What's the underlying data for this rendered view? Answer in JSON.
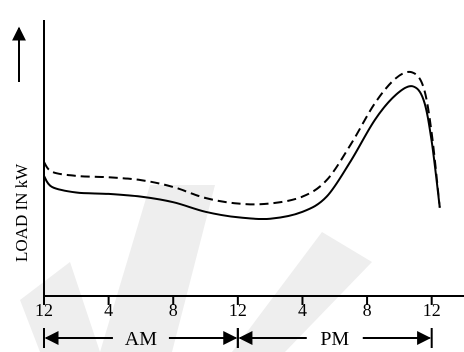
{
  "chart_data": {
    "type": "line",
    "ylabel": "LOAD IN kW",
    "xticks": [
      {
        "hour": 0,
        "label": "12"
      },
      {
        "hour": 4,
        "label": "4"
      },
      {
        "hour": 8,
        "label": "8"
      },
      {
        "hour": 12,
        "label": "12"
      },
      {
        "hour": 16,
        "label": "4"
      },
      {
        "hour": 20,
        "label": "8"
      },
      {
        "hour": 24,
        "label": "12"
      }
    ],
    "periods": [
      {
        "label": "AM",
        "start_hour": 0,
        "end_hour": 12
      },
      {
        "label": "PM",
        "start_hour": 12,
        "end_hour": 24
      }
    ],
    "xlim": [
      0,
      26
    ],
    "ylim": [
      0,
      10
    ],
    "grid": false,
    "series": [
      {
        "style": "solid",
        "color": "#000000",
        "points": [
          [
            0.0,
            4.35
          ],
          [
            0.5,
            3.95
          ],
          [
            2,
            3.75
          ],
          [
            4,
            3.7
          ],
          [
            6,
            3.6
          ],
          [
            8,
            3.4
          ],
          [
            10,
            3.05
          ],
          [
            12,
            2.85
          ],
          [
            14,
            2.8
          ],
          [
            16,
            3.05
          ],
          [
            17.5,
            3.6
          ],
          [
            19,
            4.9
          ],
          [
            20.5,
            6.4
          ],
          [
            21.8,
            7.3
          ],
          [
            22.8,
            7.6
          ],
          [
            23.5,
            7.1
          ],
          [
            24.0,
            5.6
          ],
          [
            24.5,
            3.2
          ]
        ]
      },
      {
        "style": "dashed",
        "color": "#000000",
        "points": [
          [
            0.0,
            4.85
          ],
          [
            0.5,
            4.5
          ],
          [
            2,
            4.35
          ],
          [
            4,
            4.3
          ],
          [
            6,
            4.2
          ],
          [
            8,
            3.95
          ],
          [
            10,
            3.55
          ],
          [
            12,
            3.35
          ],
          [
            14,
            3.35
          ],
          [
            16,
            3.6
          ],
          [
            17.5,
            4.2
          ],
          [
            19,
            5.5
          ],
          [
            20.5,
            7.0
          ],
          [
            21.8,
            7.9
          ],
          [
            22.8,
            8.1
          ],
          [
            23.5,
            7.55
          ],
          [
            24.0,
            5.9
          ],
          [
            24.5,
            3.2
          ]
        ]
      }
    ]
  }
}
